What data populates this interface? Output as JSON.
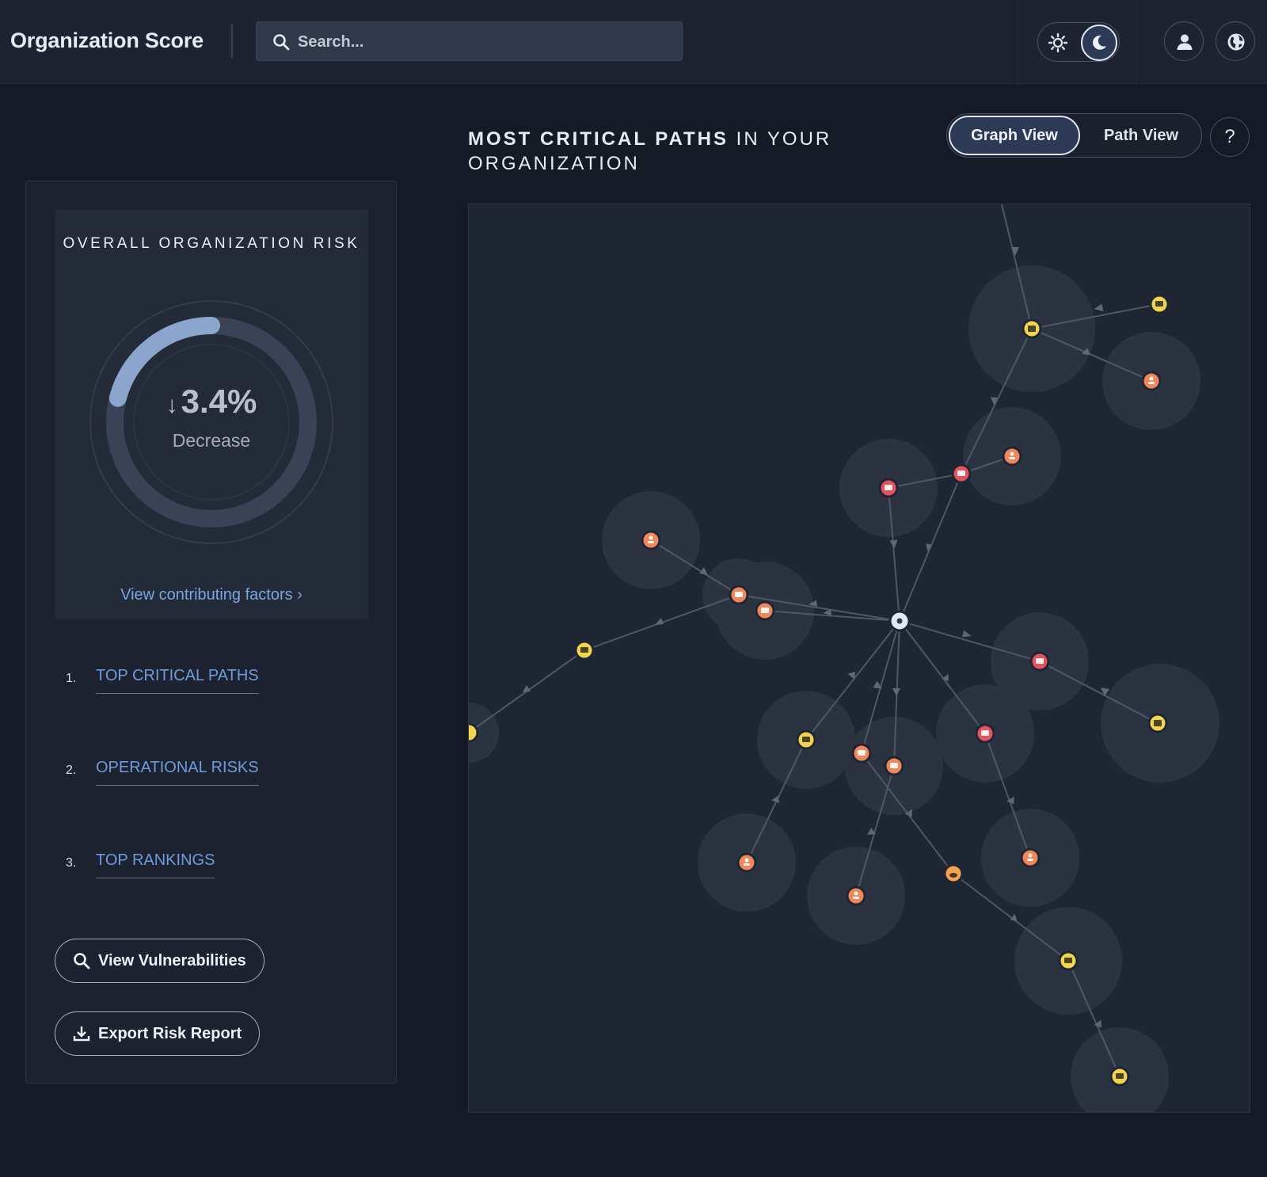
{
  "header": {
    "title": "Organization Score",
    "search_placeholder": "Search...",
    "search_icon": "search-icon",
    "theme_light_icon": "sun-icon",
    "theme_dark_icon": "moon-icon",
    "theme_active": "dark",
    "profile_icon": "user-icon",
    "language_icon": "globe-icon"
  },
  "risk_card": {
    "title": "OVERALL ORGANIZATION RISK",
    "value": "3.4%",
    "direction_icon": "arrow-down-icon",
    "label": "Decrease",
    "gauge_fraction": 0.21,
    "link": "View contributing factors",
    "link_icon": "chevron-right-icon"
  },
  "nav": [
    {
      "num": "1.",
      "label": "TOP CRITICAL PATHS"
    },
    {
      "num": "2.",
      "label": "OPERATIONAL RISKS"
    },
    {
      "num": "3.",
      "label": "TOP RANKINGS"
    }
  ],
  "actions": {
    "view_vulnerabilities": "View Vulnerabilities",
    "view_vulnerabilities_icon": "search-icon",
    "export_report": "Export Risk Report",
    "export_report_icon": "download-icon"
  },
  "main": {
    "title_strong": "MOST CRITICAL PATHS",
    "title_rest": " IN YOUR ORGANIZATION",
    "tabs": [
      {
        "label": "Graph View",
        "active": true
      },
      {
        "label": "Path View",
        "active": false
      }
    ],
    "help_label": "?"
  },
  "colors": {
    "accent": "#6f9bd8",
    "node_red": "#e8505b",
    "node_orange": "#f0875a",
    "node_yellow": "#f2d44e",
    "node_center": "#dfe8f5"
  }
}
